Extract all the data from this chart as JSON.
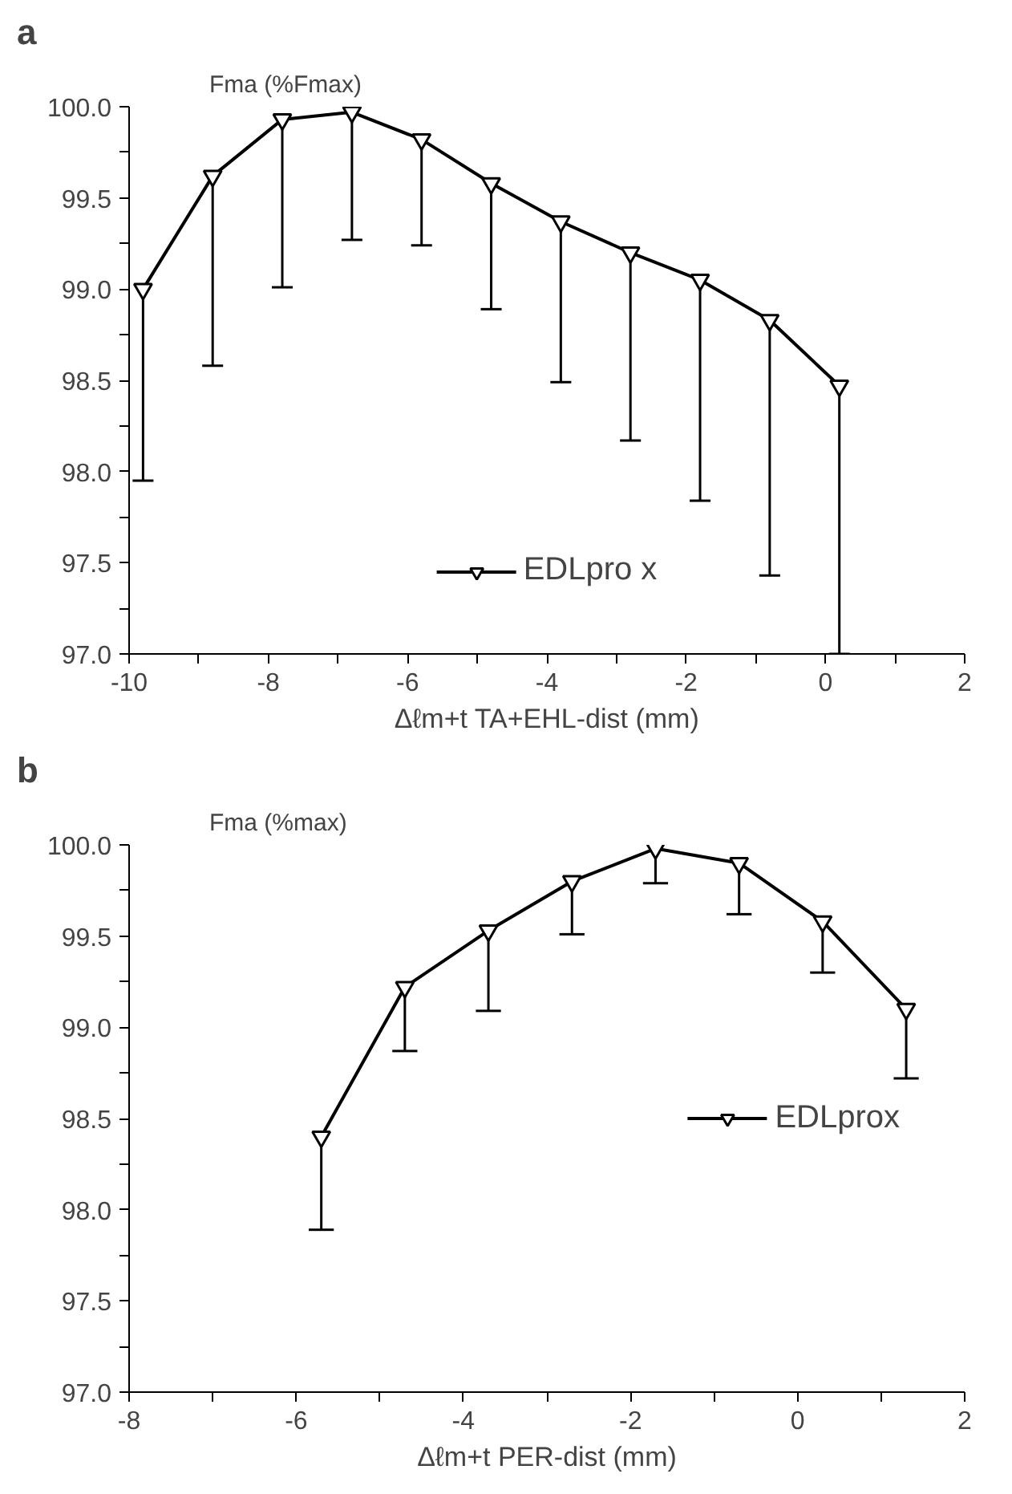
{
  "chart_data": [
    {
      "type": "line",
      "title": "a",
      "ylabel": "Fma (%Fmax)",
      "xlabel": "Δℓm+t TA+EHL-dist (mm)",
      "x": [
        -9.8,
        -8.8,
        -7.8,
        -6.8,
        -5.8,
        -4.8,
        -3.8,
        -2.8,
        -1.8,
        -0.8,
        0.2
      ],
      "series": [
        {
          "name": "EDLpro x",
          "color": "#000000",
          "values": [
            99.0,
            99.62,
            99.93,
            99.97,
            99.82,
            99.58,
            99.37,
            99.2,
            99.05,
            98.83,
            98.47
          ],
          "errors": [
            [
              97.95,
              99.0
            ],
            [
              98.58,
              99.62
            ],
            [
              99.01,
              99.93
            ],
            [
              99.27,
              99.97
            ],
            [
              99.24,
              99.82
            ],
            [
              98.89,
              99.58
            ],
            [
              98.49,
              99.37
            ],
            [
              98.17,
              99.2
            ],
            [
              97.84,
              99.05
            ],
            [
              97.43,
              98.83
            ],
            [
              97.0,
              98.47
            ]
          ]
        }
      ],
      "xlim": [
        -10,
        2
      ],
      "xticks": [
        -10,
        {
          "value": -9,
          "label": null
        },
        -8,
        {
          "value": -7,
          "label": null
        },
        -6,
        {
          "value": -5,
          "label": null
        },
        -4,
        {
          "value": -3,
          "label": null
        },
        -2,
        {
          "value": -1,
          "label": null
        },
        0,
        {
          "value": 1,
          "label": null
        },
        2
      ],
      "ylim": [
        97,
        100
      ],
      "yticks": [
        {
          "value": 97,
          "label": "97.0"
        },
        {
          "value": 97.25,
          "label": null
        },
        {
          "value": 97.5,
          "label": "97.5"
        },
        {
          "value": 97.75,
          "label": null
        },
        {
          "value": 98,
          "label": "98.0"
        },
        {
          "value": 98.25,
          "label": null
        },
        {
          "value": 98.5,
          "label": "98.5"
        },
        {
          "value": 98.75,
          "label": null
        },
        {
          "value": 99,
          "label": "99.0"
        },
        {
          "value": 99.25,
          "label": null
        },
        {
          "value": 99.5,
          "label": "99.5"
        },
        {
          "value": 99.75,
          "label": null
        },
        {
          "value": 100,
          "label": "100.0"
        }
      ],
      "marker": "triangle",
      "legend": "bottom",
      "grid": false
    },
    {
      "type": "line",
      "title": "b",
      "ylabel": "Fma (%max)",
      "xlabel": "Δℓm+t PER-dist (mm)",
      "x": [
        -5.7,
        -4.7,
        -3.7,
        -2.7,
        -1.7,
        -0.7,
        0.3,
        1.3
      ],
      "series": [
        {
          "name": "EDLprox",
          "color": "#000000",
          "values": [
            98.4,
            99.22,
            99.53,
            99.8,
            99.98,
            99.9,
            99.58,
            99.1
          ],
          "errors": [
            [
              97.89,
              98.4
            ],
            [
              98.87,
              99.22
            ],
            [
              99.09,
              99.53
            ],
            [
              99.51,
              99.8
            ],
            [
              99.79,
              99.98
            ],
            [
              99.62,
              99.9
            ],
            [
              99.3,
              99.58
            ],
            [
              98.72,
              99.1
            ]
          ]
        }
      ],
      "xlim": [
        -8,
        2
      ],
      "xticks": [
        -8,
        {
          "value": -7,
          "label": null
        },
        -6,
        {
          "value": -5,
          "label": null
        },
        -4,
        {
          "value": -3,
          "label": null
        },
        -2,
        {
          "value": -1,
          "label": null
        },
        0,
        {
          "value": 1,
          "label": null
        },
        2
      ],
      "ylim": [
        97,
        100
      ],
      "yticks": [
        {
          "value": 97,
          "label": "97.0"
        },
        {
          "value": 97.25,
          "label": null
        },
        {
          "value": 97.5,
          "label": "97.5"
        },
        {
          "value": 97.75,
          "label": null
        },
        {
          "value": 98,
          "label": "98.0"
        },
        {
          "value": 98.25,
          "label": null
        },
        {
          "value": 98.5,
          "label": "98.5"
        },
        {
          "value": 98.75,
          "label": null
        },
        {
          "value": 99,
          "label": "99.0"
        },
        {
          "value": 99.25,
          "label": null
        },
        {
          "value": 99.5,
          "label": "99.5"
        },
        {
          "value": 99.75,
          "label": null
        },
        {
          "value": 100,
          "label": "100.0"
        }
      ],
      "marker": "triangle",
      "legend": "right",
      "grid": false
    }
  ]
}
